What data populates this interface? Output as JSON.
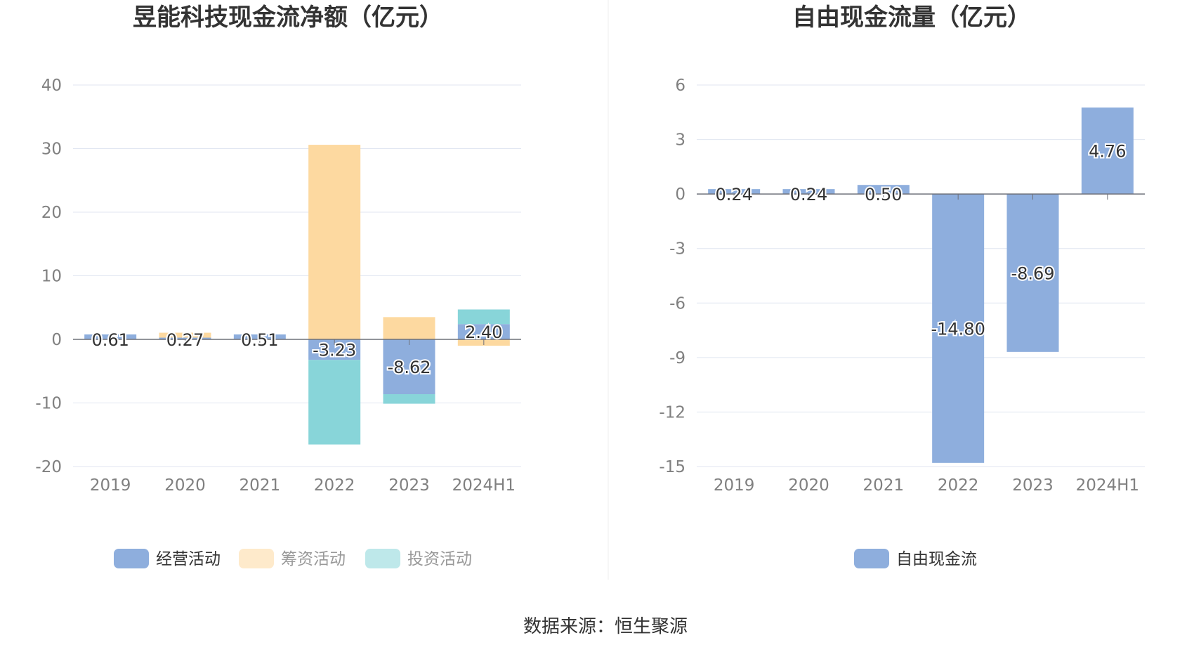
{
  "source_text": "数据来源：恒生聚源",
  "chart_data": [
    {
      "type": "bar",
      "stacked": true,
      "title": "昱能科技现金流净额（亿元）",
      "categories": [
        "2019",
        "2020",
        "2021",
        "2022",
        "2023",
        "2024H1"
      ],
      "ylim": [
        -20,
        40
      ],
      "yticks": [
        40,
        30,
        20,
        10,
        0,
        -10,
        -20
      ],
      "grid": true,
      "legend_position": "bottom",
      "series": [
        {
          "name": "经营活动",
          "color": "#8eaedd",
          "values": [
            0.61,
            0.27,
            0.51,
            -3.23,
            -8.62,
            2.4
          ],
          "labels": [
            "0.61",
            "0.27",
            "0.51",
            "-3.23",
            "-8.62",
            "2.40"
          ]
        },
        {
          "name": "筹资活动",
          "color": "#fdd9a0",
          "values": [
            0.0,
            0.7,
            0.0,
            30.6,
            3.5,
            -1.0
          ]
        },
        {
          "name": "投资活动",
          "color": "#88d5d9",
          "values": [
            0.0,
            0.0,
            0.0,
            -13.3,
            -1.5,
            2.3
          ]
        }
      ]
    },
    {
      "type": "bar",
      "title": "自由现金流量（亿元）",
      "categories": [
        "2019",
        "2020",
        "2021",
        "2022",
        "2023",
        "2024H1"
      ],
      "ylim": [
        -15,
        6
      ],
      "yticks": [
        6,
        3,
        0,
        -3,
        -6,
        -9,
        -12,
        -15
      ],
      "grid": true,
      "legend_position": "bottom",
      "series": [
        {
          "name": "自由现金流",
          "color": "#8eaedd",
          "values": [
            0.24,
            0.24,
            0.5,
            -14.8,
            -8.69,
            4.76
          ],
          "labels": [
            "0.24",
            "0.24",
            "0.50",
            "-14.80",
            "-8.69",
            "4.76"
          ]
        }
      ]
    }
  ]
}
